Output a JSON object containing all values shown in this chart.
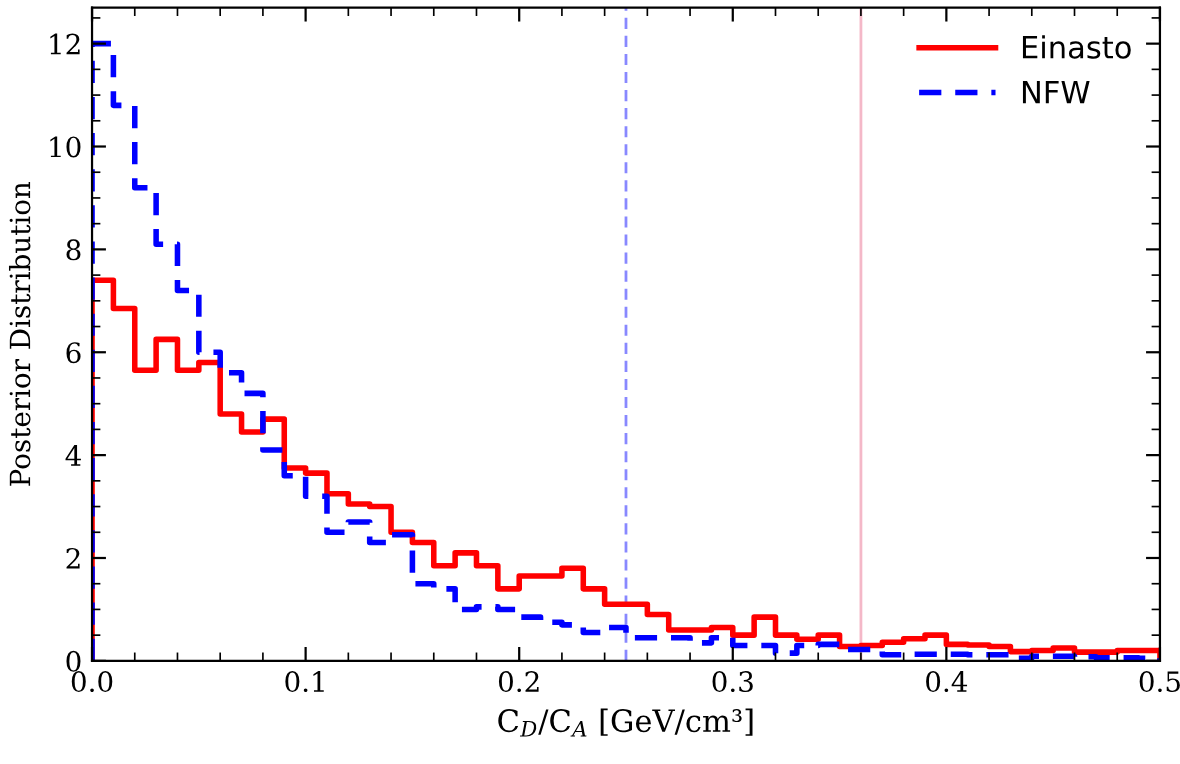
{
  "chart_data": {
    "type": "histogram",
    "xlabel": "C$_{D}$/C$_{A}$ [GeV/cm³]",
    "ylabel": "Posterior Distribution",
    "bins": [
      0.0,
      0.01,
      0.02,
      0.03,
      0.04,
      0.05,
      0.06,
      0.07,
      0.08,
      0.09,
      0.1,
      0.11,
      0.12,
      0.13,
      0.14,
      0.15,
      0.16,
      0.17,
      0.18,
      0.19,
      0.2,
      0.21,
      0.22,
      0.23,
      0.24,
      0.25,
      0.26,
      0.27,
      0.28,
      0.29,
      0.3,
      0.31,
      0.32,
      0.33,
      0.34,
      0.35,
      0.36,
      0.37,
      0.38,
      0.39,
      0.4,
      0.41,
      0.42,
      0.43,
      0.44,
      0.45,
      0.46,
      0.47,
      0.48,
      0.49,
      0.5
    ],
    "series": [
      {
        "name": "Einasto",
        "color": "#ff0000",
        "line_style": "solid",
        "values": [
          7.4,
          6.85,
          5.65,
          6.25,
          5.65,
          5.8,
          4.8,
          4.45,
          4.7,
          3.75,
          3.65,
          3.25,
          3.05,
          3.0,
          2.5,
          2.3,
          1.85,
          2.1,
          1.85,
          1.4,
          1.65,
          1.65,
          1.8,
          1.4,
          1.1,
          1.1,
          0.9,
          0.6,
          0.6,
          0.65,
          0.5,
          0.85,
          0.5,
          0.42,
          0.5,
          0.28,
          0.3,
          0.36,
          0.43,
          0.5,
          0.32,
          0.31,
          0.28,
          0.18,
          0.2,
          0.25,
          0.17,
          0.17,
          0.2,
          0.2
        ]
      },
      {
        "name": "NFW",
        "color": "#0000ff",
        "line_style": "dashed",
        "values": [
          12.0,
          10.8,
          9.2,
          8.1,
          7.2,
          6.0,
          5.6,
          5.2,
          4.1,
          3.6,
          3.2,
          2.5,
          2.7,
          2.3,
          2.45,
          1.5,
          1.4,
          1.0,
          1.05,
          1.0,
          0.85,
          0.75,
          0.7,
          0.55,
          0.65,
          0.45,
          0.45,
          0.45,
          0.35,
          0.45,
          0.3,
          0.3,
          0.15,
          0.3,
          0.32,
          0.22,
          0.22,
          0.12,
          0.13,
          0.13,
          0.13,
          0.12,
          0.12,
          0.05,
          0.09,
          0.09,
          0.08,
          0.06,
          0.06,
          0.05
        ]
      }
    ],
    "ref_lines": [
      {
        "axis": "x",
        "value": 0.25,
        "color": "#8888ff",
        "line_style": "dashed"
      },
      {
        "axis": "x",
        "value": 0.36,
        "color": "#f4b8c8",
        "line_style": "solid"
      }
    ],
    "xlim": [
      0,
      0.5
    ],
    "ylim": [
      0,
      12.7
    ],
    "xticks": [
      {
        "value": 0,
        "label": "0.0"
      },
      {
        "value": 0.02,
        "label": null
      },
      {
        "value": 0.04,
        "label": null
      },
      {
        "value": 0.06,
        "label": null
      },
      {
        "value": 0.08,
        "label": null
      },
      0.1,
      {
        "value": 0.12,
        "label": null
      },
      {
        "value": 0.14,
        "label": null
      },
      {
        "value": 0.16,
        "label": null
      },
      {
        "value": 0.18,
        "label": null
      },
      0.2,
      {
        "value": 0.22,
        "label": null
      },
      {
        "value": 0.24,
        "label": null
      },
      {
        "value": 0.26,
        "label": null
      },
      {
        "value": 0.28,
        "label": null
      },
      0.3,
      {
        "value": 0.32,
        "label": null
      },
      {
        "value": 0.34,
        "label": null
      },
      {
        "value": 0.36,
        "label": null
      },
      {
        "value": 0.38,
        "label": null
      },
      0.4,
      {
        "value": 0.42,
        "label": null
      },
      {
        "value": 0.44,
        "label": null
      },
      {
        "value": 0.46,
        "label": null
      },
      {
        "value": 0.48,
        "label": null
      },
      0.5
    ],
    "yticks": [
      0,
      {
        "value": 0.5,
        "label": null
      },
      {
        "value": 1,
        "label": null
      },
      {
        "value": 1.5,
        "label": null
      },
      2,
      {
        "value": 2.5,
        "label": null
      },
      {
        "value": 3,
        "label": null
      },
      {
        "value": 3.5,
        "label": null
      },
      4,
      {
        "value": 4.5,
        "label": null
      },
      {
        "value": 5,
        "label": null
      },
      {
        "value": 5.5,
        "label": null
      },
      6,
      {
        "value": 6.5,
        "label": null
      },
      {
        "value": 7,
        "label": null
      },
      {
        "value": 7.5,
        "label": null
      },
      8,
      {
        "value": 8.5,
        "label": null
      },
      {
        "value": 9,
        "label": null
      },
      {
        "value": 9.5,
        "label": null
      },
      10,
      {
        "value": 10.5,
        "label": null
      },
      {
        "value": 11,
        "label": null
      },
      {
        "value": 11.5,
        "label": null
      },
      12,
      {
        "value": 12.5,
        "label": null
      }
    ],
    "legend": "top right",
    "grid": false
  }
}
